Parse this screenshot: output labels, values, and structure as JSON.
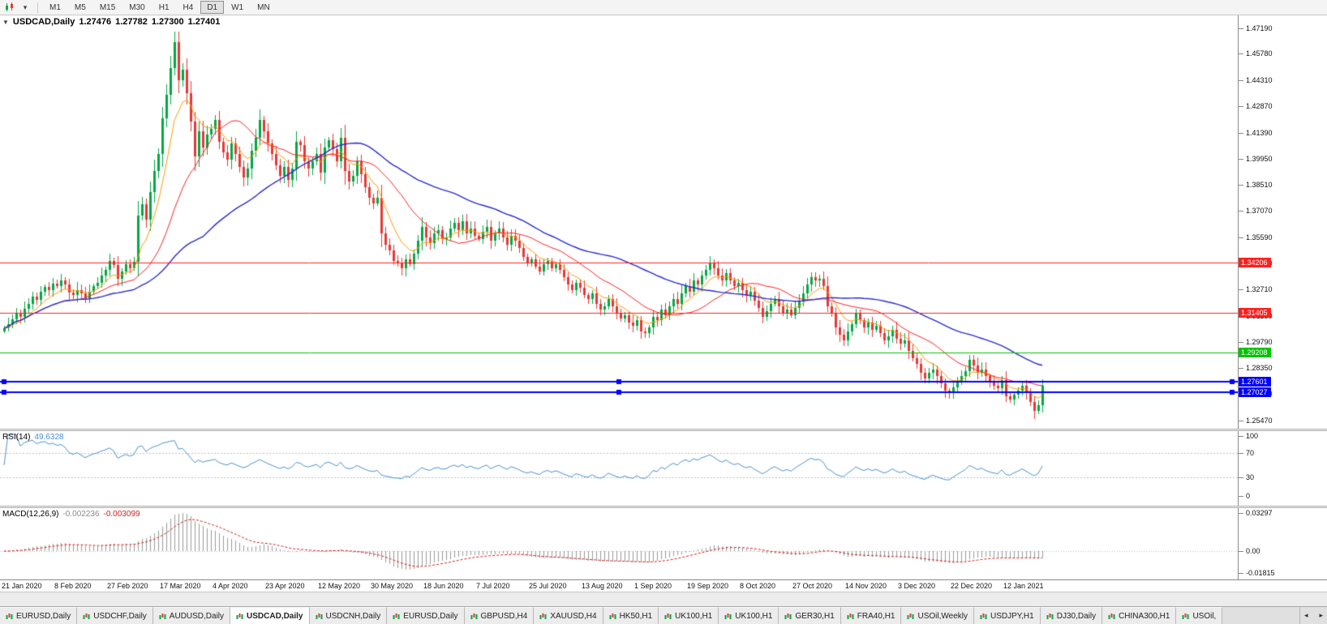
{
  "toolbar": {
    "timeframes": [
      "M1",
      "M5",
      "M15",
      "M30",
      "H1",
      "H4",
      "D1",
      "W1",
      "MN"
    ],
    "active_timeframe": "D1",
    "icons": {
      "chart_type": "candlestick-chart",
      "dropdown_glyph": "▾"
    }
  },
  "chart": {
    "title": "USDCAD,Daily",
    "ohlc": {
      "open": "1.27476",
      "high": "1.27782",
      "low": "1.27300",
      "close": "1.27401"
    },
    "one_click_glyph": "▼",
    "y_ticks": [
      "1.47190",
      "1.45780",
      "1.44310",
      "1.42870",
      "1.41390",
      "1.39950",
      "1.38510",
      "1.37070",
      "1.35590",
      "1.34150",
      "1.32710",
      "1.31230",
      "1.29790",
      "1.28350",
      "1.26910",
      "1.25470"
    ],
    "x_labels": [
      "21 Jan 2020",
      "8 Feb 2020",
      "27 Feb 2020",
      "17 Mar 2020",
      "4 Apr 2020",
      "23 Apr 2020",
      "12 May 2020",
      "30 May 2020",
      "18 Jun 2020",
      "7 Jul 2020",
      "25 Jul 2020",
      "13 Aug 2020",
      "1 Sep 2020",
      "19 Sep 2020",
      "8 Oct 2020",
      "27 Oct 2020",
      "14 Nov 2020",
      "3 Dec 2020",
      "22 Dec 2020",
      "12 Jan 2021"
    ],
    "x_label_bar_step": 13,
    "price_scale": {
      "top": 1.479,
      "bottom": 1.25
    },
    "hlines": [
      {
        "price": 1.34206,
        "label": "1.34206",
        "color": "#ff2020",
        "width": 1,
        "handles": false
      },
      {
        "price": 1.31405,
        "label": "1.31405",
        "color": "#ff2020",
        "width": 1,
        "handles": false
      },
      {
        "price": 1.29208,
        "label": "1.29208",
        "color": "#00c400",
        "width": 1,
        "handles": false
      },
      {
        "price": 1.27601,
        "label": "1.27601",
        "color": "#0000ff",
        "width": 2,
        "handles": true
      },
      {
        "price": 1.27027,
        "label": "1.27027",
        "color": "#0000ff",
        "width": 2,
        "handles": true
      }
    ]
  },
  "rsi": {
    "label": "RSI(14)",
    "value": "49.6328",
    "period": 14,
    "levels": [
      70,
      30
    ],
    "ticks": [
      100,
      70,
      30,
      0
    ],
    "color": "#4a90d2"
  },
  "macd": {
    "label": "MACD(12,26,9)",
    "value_main": "-0.002236",
    "value_signal": "-0.003099",
    "fast": 12,
    "slow": 26,
    "signal": 9,
    "ticks": [
      "0.03297",
      "0.00",
      "-0.01815"
    ],
    "hist_color": "#9a9a9a",
    "signal_color": "#d02020"
  },
  "colors": {
    "up": "#00A843",
    "down": "#E53935",
    "ma_fast": "#FF9900",
    "ma_mid": "#FF2020",
    "ma_slow": "#2B2BD0",
    "level_dash": "#bdbdbd"
  },
  "chart_data": {
    "type": "candlestick",
    "symbol": "USDCAD",
    "timeframe": "Daily",
    "start_label": "21 Jan 2020",
    "end_label": "12 Jan 2021",
    "closes": [
      1.3055,
      1.308,
      1.3105,
      1.314,
      1.312,
      1.3165,
      1.319,
      1.323,
      1.3215,
      1.326,
      1.3285,
      1.327,
      1.3305,
      1.329,
      1.332,
      1.33,
      1.3255,
      1.324,
      1.327,
      1.325,
      1.3225,
      1.326,
      1.329,
      1.331,
      1.335,
      1.338,
      1.343,
      1.3405,
      1.333,
      1.337,
      1.341,
      1.339,
      1.3425,
      1.368,
      1.3745,
      1.366,
      1.381,
      1.393,
      1.402,
      1.422,
      1.435,
      1.45,
      1.464,
      1.443,
      1.449,
      1.436,
      1.42,
      1.401,
      1.415,
      1.406,
      1.413,
      1.416,
      1.421,
      1.409,
      1.403,
      1.399,
      1.408,
      1.402,
      1.395,
      1.389,
      1.394,
      1.404,
      1.411,
      1.421,
      1.415,
      1.408,
      1.402,
      1.396,
      1.39,
      1.395,
      1.388,
      1.394,
      1.409,
      1.407,
      1.398,
      1.394,
      1.398,
      1.402,
      1.392,
      1.406,
      1.41,
      1.405,
      1.398,
      1.411,
      1.393,
      1.387,
      1.39,
      1.398,
      1.391,
      1.384,
      1.378,
      1.375,
      1.378,
      1.358,
      1.352,
      1.349,
      1.343,
      1.342,
      1.339,
      1.344,
      1.341,
      1.347,
      1.354,
      1.362,
      1.356,
      1.353,
      1.358,
      1.36,
      1.355,
      1.356,
      1.361,
      1.364,
      1.36,
      1.365,
      1.358,
      1.361,
      1.357,
      1.355,
      1.359,
      1.362,
      1.354,
      1.358,
      1.361,
      1.356,
      1.352,
      1.357,
      1.354,
      1.35,
      1.345,
      1.342,
      1.344,
      1.34,
      1.337,
      1.341,
      1.343,
      1.339,
      1.341,
      1.338,
      1.334,
      1.33,
      1.327,
      1.331,
      1.328,
      1.324,
      1.322,
      1.325,
      1.319,
      1.316,
      1.318,
      1.322,
      1.318,
      1.314,
      1.311,
      1.313,
      1.309,
      1.307,
      1.31,
      1.304,
      1.303,
      1.306,
      1.312,
      1.31,
      1.316,
      1.313,
      1.318,
      1.322,
      1.319,
      1.325,
      1.329,
      1.326,
      1.332,
      1.33,
      1.335,
      1.338,
      1.342,
      1.339,
      1.335,
      1.332,
      1.336,
      1.332,
      1.329,
      1.331,
      1.327,
      1.324,
      1.326,
      1.321,
      1.317,
      1.312,
      1.315,
      1.319,
      1.322,
      1.318,
      1.314,
      1.316,
      1.313,
      1.317,
      1.321,
      1.325,
      1.33,
      1.334,
      1.332,
      1.333,
      1.329,
      1.318,
      1.314,
      1.306,
      1.302,
      1.299,
      1.304,
      1.308,
      1.314,
      1.31,
      1.306,
      1.309,
      1.305,
      1.307,
      1.303,
      1.299,
      1.301,
      1.305,
      1.3,
      1.297,
      1.299,
      1.293,
      1.289,
      1.286,
      1.281,
      1.278,
      1.281,
      1.283,
      1.279,
      1.275,
      1.271,
      1.27,
      1.273,
      1.276,
      1.279,
      1.282,
      1.288,
      1.285,
      1.281,
      1.283,
      1.279,
      1.276,
      1.274,
      1.2725,
      1.277,
      1.268,
      1.266,
      1.269,
      1.271,
      1.274,
      1.27,
      1.265,
      1.26,
      1.263,
      1.274
    ],
    "overlays": [
      {
        "name": "ema-fast",
        "method": "ema",
        "period": 8,
        "color_key": "ma_fast",
        "width": 1
      },
      {
        "name": "sma-mid",
        "method": "sma",
        "period": 20,
        "color_key": "ma_mid",
        "width": 1
      },
      {
        "name": "sma-slow",
        "method": "sma",
        "period": 50,
        "color_key": "ma_slow",
        "width": 1.4
      }
    ]
  },
  "tabs": {
    "items": [
      "EURUSD,Daily",
      "USDCHF,Daily",
      "AUDUSD,Daily",
      "USDCAD,Daily",
      "USDCNH,Daily",
      "EURUSD,Daily",
      "GBPUSD,H4",
      "XAUUSD,H4",
      "HK50,H1",
      "UK100,H1",
      "UK100,H1",
      "GER30,H1",
      "FRA40,H1",
      "USOil,Weekly",
      "USDJPY,H1",
      "DJ30,Daily",
      "CHINA300,H1",
      "USOil,"
    ],
    "active_index": 3,
    "scroll_left_glyph": "◂",
    "scroll_right_glyph": "▸"
  }
}
